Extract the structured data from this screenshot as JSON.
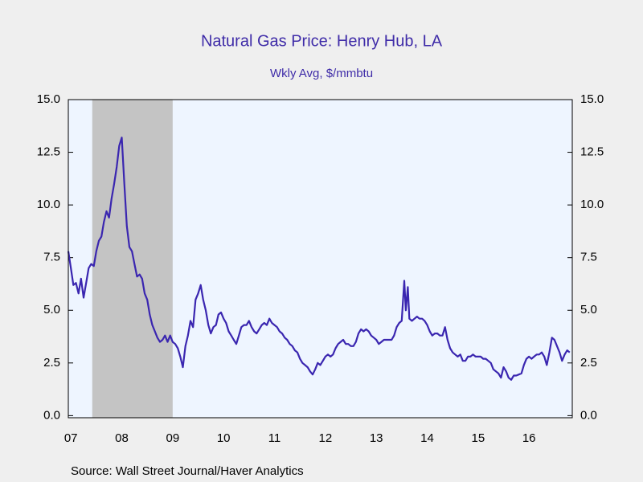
{
  "chart_data": {
    "type": "line",
    "title": "Natural Gas Price: Henry Hub, LA",
    "subtitle": "Wkly Avg, $/mmbtu",
    "source": "Source:  Wall Street Journal/Haver Analytics",
    "shaded_ranges": [
      [
        2007.92,
        2009.5
      ]
    ],
    "xlim": [
      2007.45,
      2017.35
    ],
    "xticks": [
      {
        "value": 2007.5,
        "label": "07"
      },
      {
        "value": 2008.5,
        "label": "08"
      },
      {
        "value": 2009.5,
        "label": "09"
      },
      {
        "value": 2010.5,
        "label": "10"
      },
      {
        "value": 2011.5,
        "label": "11"
      },
      {
        "value": 2012.5,
        "label": "12"
      },
      {
        "value": 2013.5,
        "label": "13"
      },
      {
        "value": 2014.5,
        "label": "14"
      },
      {
        "value": 2015.5,
        "label": "15"
      },
      {
        "value": 2016.5,
        "label": "16"
      }
    ],
    "ylim": [
      -0.1,
      15
    ],
    "yticks": [
      {
        "value": 0,
        "label": "0.0"
      },
      {
        "value": 2.5,
        "label": "2.5"
      },
      {
        "value": 5,
        "label": "5.0"
      },
      {
        "value": 7.5,
        "label": "7.5"
      },
      {
        "value": 10,
        "label": "10.0"
      },
      {
        "value": 12.5,
        "label": "12.5"
      },
      {
        "value": 15,
        "label": "15.0"
      }
    ],
    "x": [
      2007.45,
      2007.5,
      2007.55,
      2007.6,
      2007.65,
      2007.7,
      2007.75,
      2007.8,
      2007.85,
      2007.9,
      2007.95,
      2008.0,
      2008.05,
      2008.1,
      2008.15,
      2008.2,
      2008.25,
      2008.3,
      2008.35,
      2008.4,
      2008.45,
      2008.5,
      2008.55,
      2008.6,
      2008.65,
      2008.7,
      2008.75,
      2008.8,
      2008.85,
      2008.9,
      2008.95,
      2009.0,
      2009.05,
      2009.1,
      2009.15,
      2009.2,
      2009.25,
      2009.3,
      2009.35,
      2009.4,
      2009.45,
      2009.5,
      2009.55,
      2009.6,
      2009.65,
      2009.7,
      2009.75,
      2009.8,
      2009.85,
      2009.9,
      2009.95,
      2010.0,
      2010.05,
      2010.1,
      2010.15,
      2010.2,
      2010.25,
      2010.3,
      2010.35,
      2010.4,
      2010.45,
      2010.5,
      2010.55,
      2010.6,
      2010.65,
      2010.7,
      2010.75,
      2010.8,
      2010.85,
      2010.9,
      2010.95,
      2011.0,
      2011.05,
      2011.1,
      2011.15,
      2011.2,
      2011.25,
      2011.3,
      2011.35,
      2011.4,
      2011.45,
      2011.5,
      2011.55,
      2011.6,
      2011.65,
      2011.7,
      2011.75,
      2011.8,
      2011.85,
      2011.9,
      2011.95,
      2012.0,
      2012.05,
      2012.1,
      2012.15,
      2012.2,
      2012.25,
      2012.3,
      2012.35,
      2012.4,
      2012.45,
      2012.5,
      2012.55,
      2012.6,
      2012.65,
      2012.7,
      2012.75,
      2012.8,
      2012.85,
      2012.9,
      2012.95,
      2013.0,
      2013.05,
      2013.1,
      2013.15,
      2013.2,
      2013.25,
      2013.3,
      2013.35,
      2013.4,
      2013.45,
      2013.5,
      2013.55,
      2013.6,
      2013.65,
      2013.7,
      2013.75,
      2013.8,
      2013.85,
      2013.9,
      2013.95,
      2014.0,
      2014.05,
      2014.08,
      2014.12,
      2014.15,
      2014.2,
      2014.25,
      2014.3,
      2014.35,
      2014.4,
      2014.45,
      2014.5,
      2014.55,
      2014.6,
      2014.65,
      2014.7,
      2014.75,
      2014.8,
      2014.85,
      2014.9,
      2014.95,
      2015.0,
      2015.05,
      2015.1,
      2015.15,
      2015.2,
      2015.25,
      2015.3,
      2015.35,
      2015.4,
      2015.45,
      2015.5,
      2015.55,
      2015.6,
      2015.65,
      2015.7,
      2015.75,
      2015.8,
      2015.85,
      2015.9,
      2015.95,
      2016.0,
      2016.05,
      2016.1,
      2016.15,
      2016.2,
      2016.25,
      2016.3,
      2016.35,
      2016.4,
      2016.45,
      2016.5,
      2016.55,
      2016.6,
      2016.65,
      2016.7,
      2016.75,
      2016.8,
      2016.85,
      2016.9,
      2016.95,
      2017.0,
      2017.05,
      2017.1,
      2017.15,
      2017.2,
      2017.25,
      2017.3
    ],
    "series": [
      {
        "name": "Henry Hub",
        "color": "#3a26b0",
        "values": [
          7.8,
          7.0,
          6.2,
          6.3,
          5.8,
          6.5,
          5.6,
          6.3,
          7.0,
          7.2,
          7.1,
          7.8,
          8.3,
          8.5,
          9.2,
          9.7,
          9.4,
          10.3,
          11.0,
          11.8,
          12.8,
          13.2,
          11.0,
          9.0,
          8.0,
          7.8,
          7.2,
          6.6,
          6.7,
          6.5,
          5.8,
          5.5,
          4.8,
          4.3,
          4.0,
          3.7,
          3.5,
          3.6,
          3.8,
          3.5,
          3.8,
          3.5,
          3.4,
          3.2,
          2.8,
          2.3,
          3.3,
          3.8,
          4.5,
          4.2,
          5.5,
          5.8,
          6.2,
          5.5,
          5.0,
          4.3,
          3.9,
          4.2,
          4.3,
          4.8,
          4.9,
          4.6,
          4.4,
          4.0,
          3.8,
          3.6,
          3.4,
          3.8,
          4.2,
          4.3,
          4.3,
          4.5,
          4.2,
          4.0,
          3.9,
          4.1,
          4.3,
          4.4,
          4.3,
          4.6,
          4.4,
          4.3,
          4.2,
          4.0,
          3.9,
          3.7,
          3.6,
          3.4,
          3.3,
          3.1,
          3.0,
          2.7,
          2.5,
          2.4,
          2.3,
          2.1,
          1.95,
          2.2,
          2.5,
          2.4,
          2.6,
          2.8,
          2.9,
          2.8,
          2.9,
          3.2,
          3.4,
          3.5,
          3.6,
          3.4,
          3.4,
          3.3,
          3.3,
          3.5,
          3.9,
          4.1,
          4.0,
          4.1,
          4.0,
          3.8,
          3.7,
          3.6,
          3.4,
          3.5,
          3.6,
          3.6,
          3.6,
          3.6,
          3.8,
          4.2,
          4.4,
          4.5,
          6.4,
          5.0,
          6.1,
          4.6,
          4.5,
          4.6,
          4.7,
          4.6,
          4.6,
          4.5,
          4.3,
          4.0,
          3.8,
          3.9,
          3.9,
          3.8,
          3.8,
          4.2,
          3.6,
          3.2,
          3.0,
          2.9,
          2.8,
          2.9,
          2.6,
          2.6,
          2.8,
          2.8,
          2.9,
          2.8,
          2.8,
          2.8,
          2.7,
          2.7,
          2.6,
          2.5,
          2.2,
          2.1,
          2.0,
          1.8,
          2.3,
          2.1,
          1.8,
          1.7,
          1.9,
          1.9,
          1.95,
          2.0,
          2.4,
          2.7,
          2.8,
          2.7,
          2.8,
          2.9,
          2.9,
          3.0,
          2.8,
          2.4,
          3.0,
          3.7,
          3.6,
          3.3,
          3.0,
          2.6,
          2.9,
          3.1,
          3.0
        ]
      }
    ]
  }
}
